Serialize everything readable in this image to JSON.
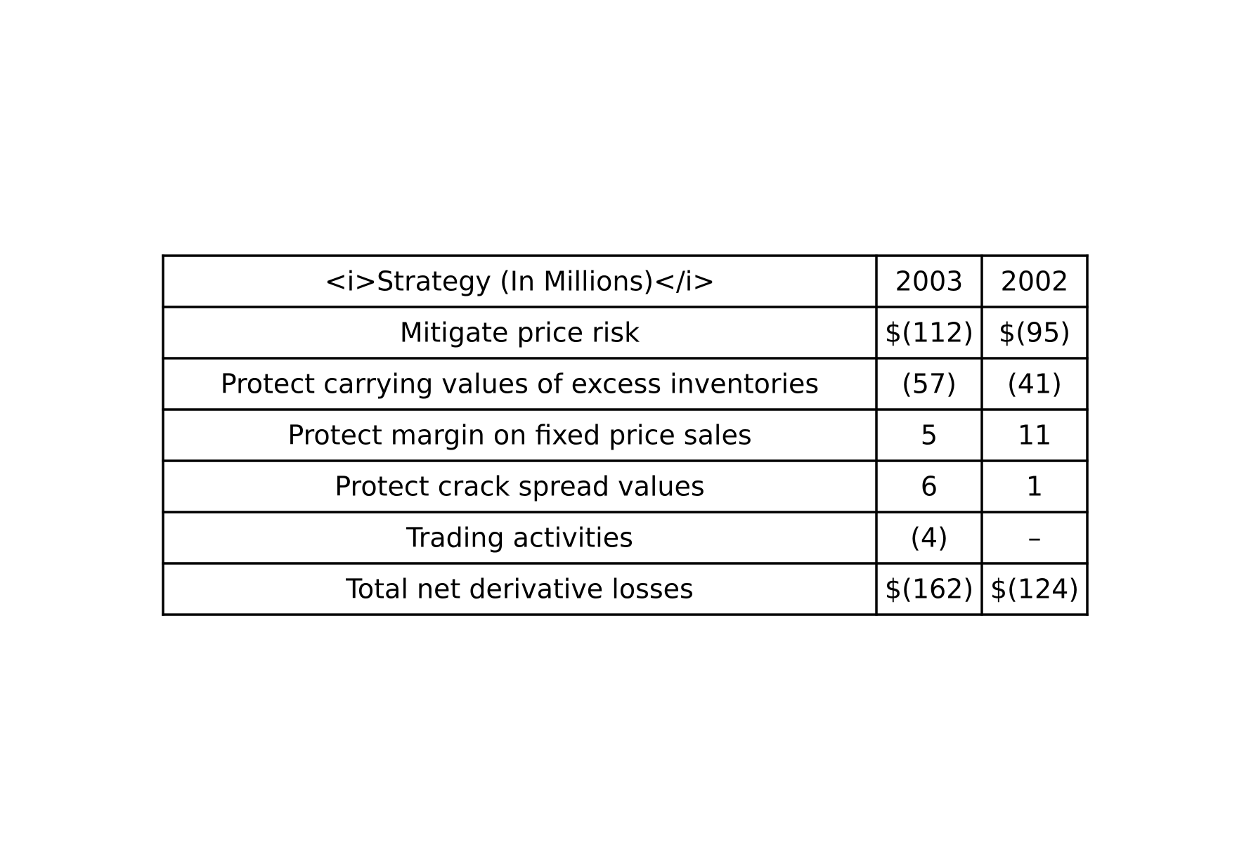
{
  "chart_data": {
    "type": "table",
    "columns": [
      "<i>Strategy (In Millions)</i>",
      "2003",
      "2002"
    ],
    "rows": [
      [
        "Mitigate price risk",
        "$(112)",
        "$(95)"
      ],
      [
        "Protect carrying values of excess inventories",
        "(57)",
        "(41)"
      ],
      [
        "Protect margin on fixed price sales",
        "5",
        "11"
      ],
      [
        "Protect crack spread values",
        "6",
        "1"
      ],
      [
        "Trading activities",
        "(4)",
        "–"
      ],
      [
        "Total net derivative losses",
        "$(162)",
        "$(124)"
      ]
    ],
    "values": {
      "2003": [
        -112,
        -57,
        5,
        6,
        -4,
        -162
      ],
      "2002": [
        -95,
        -41,
        11,
        1,
        null,
        -124
      ]
    },
    "colors": {
      "border": "#000000",
      "text": "#000000",
      "background": "#ffffff"
    }
  }
}
